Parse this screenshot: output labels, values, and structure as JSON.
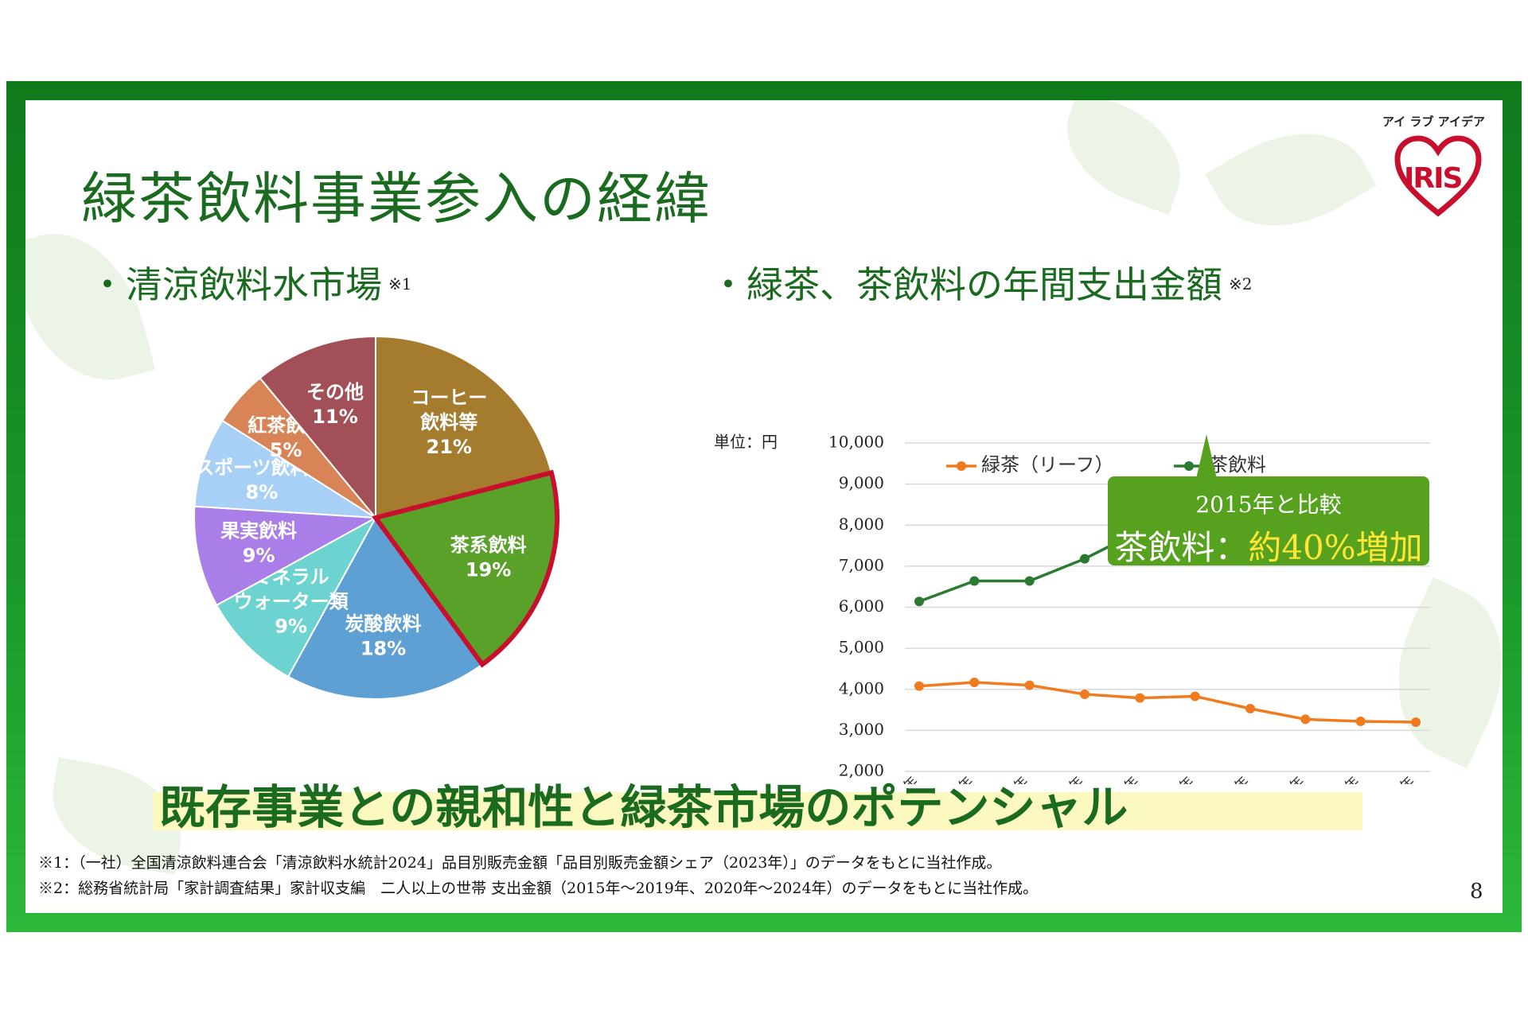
{
  "slide": {
    "title": "緑茶飲料事業参入の経緯",
    "page_number": "8",
    "brand_tagline": "アイ ラブ アイデア",
    "brand_logo_text": "IRIS",
    "brand_color": "#c8102e",
    "accent_color": "#1a6b1f"
  },
  "left_section": {
    "bullet": "・",
    "heading": "清涼飲料水市場",
    "note": "※1"
  },
  "right_section": {
    "bullet": "・",
    "heading": "緑茶、茶飲料の年間支出金額",
    "note": "※2"
  },
  "callout": {
    "line1": "2015年と比較",
    "line2_prefix": "茶飲料：",
    "line2_highlight": "約40%増加"
  },
  "banner": "既存事業との親和性と緑茶市場のポテンシャル",
  "footnotes": [
    "※1：（一社）全国清涼飲料連合会「清涼飲料水統計2024」品目別販売金額「品目別販売金額シェア（2023年）」のデータをもとに当社作成。",
    "※2：総務省統計局「家計調査結果」家計収支編　二人以上の世帯 支出金額（2015年〜2019年、2020年〜2024年）のデータをもとに当社作成。"
  ],
  "chart_data": [
    {
      "type": "pie",
      "highlighted": "茶系飲料",
      "highlight_color": "#c8102e",
      "slices": [
        {
          "label": [
            "コーヒー",
            "飲料等"
          ],
          "value": 21,
          "pct_label": "21%",
          "color": "#a57c2e"
        },
        {
          "label": [
            "茶系飲料"
          ],
          "value": 19,
          "pct_label": "19%",
          "color": "#5aa12a"
        },
        {
          "label": [
            "炭酸飲料"
          ],
          "value": 18,
          "pct_label": "18%",
          "color": "#5ea0d3"
        },
        {
          "label": [
            "ミネラル",
            "ウォーター類"
          ],
          "value": 9,
          "pct_label": "9%",
          "color": "#6dd3d0"
        },
        {
          "label": [
            "果実飲料"
          ],
          "value": 9,
          "pct_label": "9%",
          "color": "#a97ee8"
        },
        {
          "label": [
            "スポーツ飲料等"
          ],
          "value": 8,
          "pct_label": "8%",
          "color": "#a8cff5"
        },
        {
          "label": [
            "紅茶飲料"
          ],
          "value": 5,
          "pct_label": "5%",
          "color": "#d88456"
        },
        {
          "label": [
            "その他"
          ],
          "value": 11,
          "pct_label": "11%",
          "color": "#a34f57"
        }
      ]
    },
    {
      "type": "line",
      "unit_label": "単位：円",
      "categories": [
        "2015年",
        "2016年",
        "2017年",
        "2018年",
        "2019年",
        "2020年",
        "2021年",
        "2022年",
        "2023年",
        "2024年"
      ],
      "ylim": [
        2000,
        10000
      ],
      "yticks": [
        2000,
        3000,
        4000,
        5000,
        6000,
        7000,
        8000,
        9000,
        10000
      ],
      "ytick_labels": [
        "2,000",
        "3,000",
        "4,000",
        "5,000",
        "6,000",
        "7,000",
        "8,000",
        "9,000",
        "10,000"
      ],
      "grid": true,
      "legend": "top-left",
      "series": [
        {
          "name": "緑茶（リーフ）",
          "color": "#f07b1e",
          "values": [
            4080,
            4170,
            4100,
            3880,
            3790,
            3830,
            3530,
            3270,
            3220,
            3200
          ]
        },
        {
          "name": "茶飲料",
          "color": "#2a7a2f",
          "values": [
            6140,
            6640,
            6640,
            7180,
            7860,
            7680,
            7860,
            8000,
            8290,
            8650
          ]
        }
      ]
    }
  ]
}
